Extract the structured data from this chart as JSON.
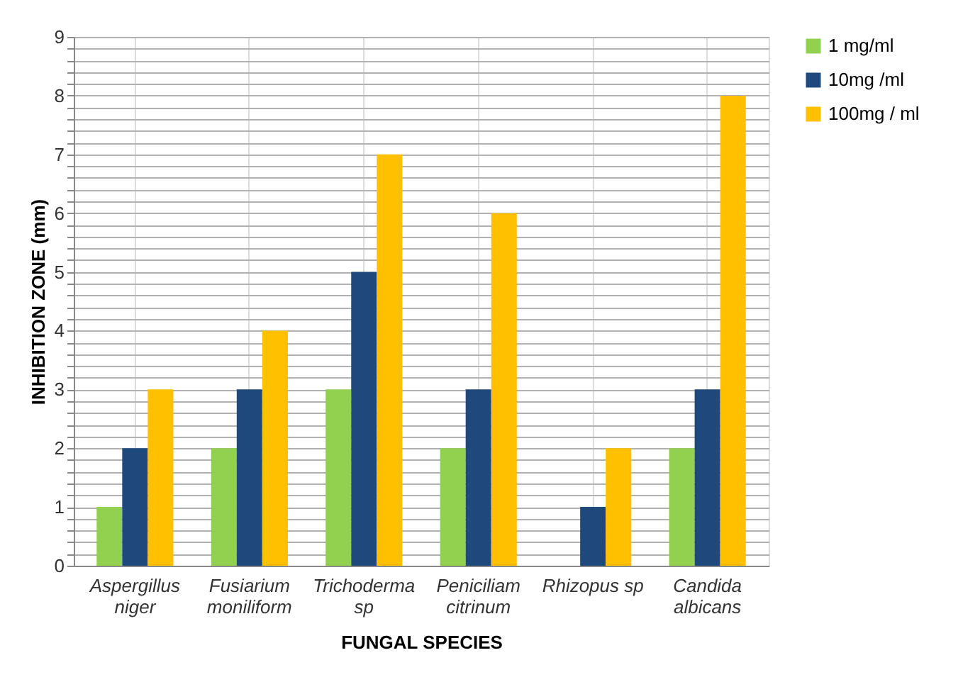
{
  "chart_data": {
    "type": "bar",
    "xlabel": "FUNGAL SPECIES",
    "ylabel": "INHIBITION ZONE (mm)",
    "categories": [
      "Aspergillus niger",
      "Fusiarium moniliform",
      "Trichoderma sp",
      "Peniciliam citrinum",
      "Rhizopus sp",
      "Candida albicans"
    ],
    "series": [
      {
        "name": "1 mg/ml",
        "color": "#92d050",
        "values": [
          1,
          2,
          3,
          2,
          0,
          2
        ]
      },
      {
        "name": "10mg /ml",
        "color": "#1f497d",
        "values": [
          2,
          3,
          5,
          3,
          1,
          3
        ]
      },
      {
        "name": "100mg / ml",
        "color": "#ffc000",
        "values": [
          3,
          4,
          7,
          6,
          2,
          8
        ]
      }
    ],
    "ylim": [
      0,
      9
    ],
    "yticks": [
      0,
      {
        "value": 0.2,
        "label": null
      },
      {
        "value": 0.4,
        "label": null
      },
      {
        "value": 0.6,
        "label": null
      },
      {
        "value": 0.8,
        "label": null
      },
      1,
      {
        "value": 1.2,
        "label": null
      },
      {
        "value": 1.4,
        "label": null
      },
      {
        "value": 1.6,
        "label": null
      },
      {
        "value": 1.8,
        "label": null
      },
      2,
      {
        "value": 2.2,
        "label": null
      },
      {
        "value": 2.4,
        "label": null
      },
      {
        "value": 2.6,
        "label": null
      },
      {
        "value": 2.8,
        "label": null
      },
      3,
      {
        "value": 3.2,
        "label": null
      },
      {
        "value": 3.4,
        "label": null
      },
      {
        "value": 3.6,
        "label": null
      },
      {
        "value": 3.8,
        "label": null
      },
      4,
      {
        "value": 4.2,
        "label": null
      },
      {
        "value": 4.4,
        "label": null
      },
      {
        "value": 4.6,
        "label": null
      },
      {
        "value": 4.8,
        "label": null
      },
      5,
      {
        "value": 5.2,
        "label": null
      },
      {
        "value": 5.4,
        "label": null
      },
      {
        "value": 5.6,
        "label": null
      },
      {
        "value": 5.8,
        "label": null
      },
      6,
      {
        "value": 6.2,
        "label": null
      },
      {
        "value": 6.4,
        "label": null
      },
      {
        "value": 6.6,
        "label": null
      },
      {
        "value": 6.8,
        "label": null
      },
      7,
      {
        "value": 7.2,
        "label": null
      },
      {
        "value": 7.4,
        "label": null
      },
      {
        "value": 7.6,
        "label": null
      },
      {
        "value": 7.8,
        "label": null
      },
      8,
      {
        "value": 8.2,
        "label": null
      },
      {
        "value": 8.4,
        "label": null
      },
      {
        "value": 8.6,
        "label": null
      },
      {
        "value": 8.8,
        "label": null
      },
      9
    ],
    "grid": true,
    "legend": "right"
  }
}
